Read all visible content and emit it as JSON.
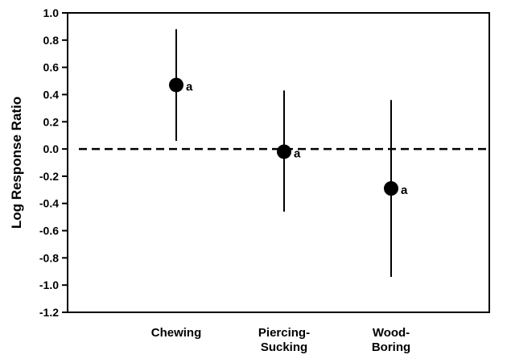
{
  "chart_data": {
    "type": "scatter",
    "title": "",
    "xlabel": "",
    "ylabel": "Log Response Ratio",
    "ylim": [
      -1.2,
      1.0
    ],
    "yticks": [
      "1.0",
      "0.8",
      "0.6",
      "0.4",
      "0.2",
      "0.0",
      "-0.2",
      "-0.4",
      "-0.6",
      "-0.8",
      "-1.0",
      "-1.2"
    ],
    "categories": [
      {
        "lines": [
          "Chewing"
        ]
      },
      {
        "lines": [
          "Piercing-",
          "Sucking"
        ]
      },
      {
        "lines": [
          "Wood-",
          "Boring"
        ]
      }
    ],
    "points": [
      {
        "category": "Chewing",
        "mean": 0.47,
        "lower": 0.06,
        "upper": 0.88,
        "label": "a"
      },
      {
        "category": "Piercing-Sucking",
        "mean": -0.02,
        "lower": -0.46,
        "upper": 0.43,
        "label": "a"
      },
      {
        "category": "Wood-Boring",
        "mean": -0.29,
        "lower": -0.94,
        "upper": 0.36,
        "label": "a"
      }
    ],
    "reference_line": 0.0,
    "grid": false,
    "legend": "none"
  }
}
